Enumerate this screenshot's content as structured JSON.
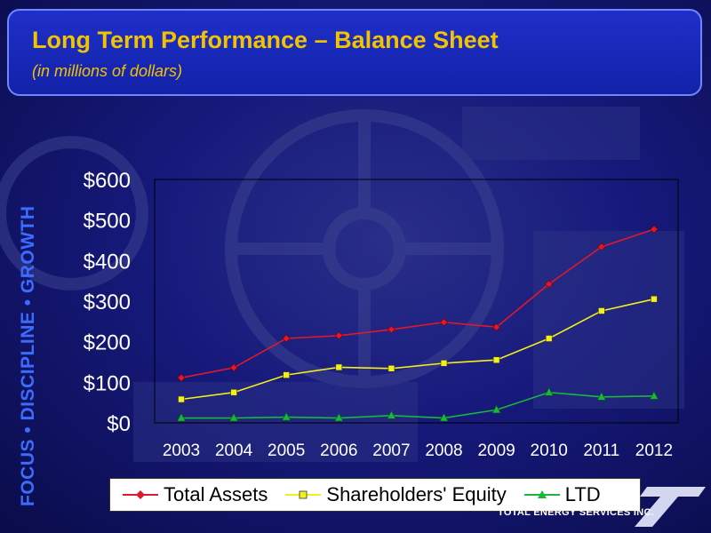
{
  "header": {
    "title": "Long Term Performance – Balance Sheet",
    "subtitle": "(in millions of dollars)"
  },
  "side_text": "FOCUS • DISCIPLINE • GROWTH",
  "logo": {
    "text": "TOTAL ENERGY SERVICES INC."
  },
  "colors": {
    "title": "#f2c300",
    "plot_border": "#000000",
    "total_assets": "#e0182a",
    "shareholders_equity": "#f3ef1a",
    "ltd": "#18b83a"
  },
  "chart_data": {
    "type": "line",
    "title": "Long Term Performance – Balance Sheet",
    "subtitle": "(in millions of dollars)",
    "xlabel": "",
    "ylabel": "",
    "categories": [
      "2003",
      "2004",
      "2005",
      "2006",
      "2007",
      "2008",
      "2009",
      "2010",
      "2011",
      "2012"
    ],
    "y_tick_labels": [
      "$0",
      "$100",
      "$200",
      "$300",
      "$400",
      "$500",
      "$600"
    ],
    "ylim": [
      0,
      600
    ],
    "grid": false,
    "legend_position": "bottom",
    "series": [
      {
        "name": "Total Assets",
        "color": "#e0182a",
        "marker": "diamond",
        "values": [
          111,
          136,
          208,
          215,
          230,
          248,
          236,
          342,
          434,
          477
        ]
      },
      {
        "name": "Shareholders' Equity",
        "color": "#f3ef1a",
        "marker": "square",
        "values": [
          58,
          75,
          118,
          137,
          134,
          147,
          155,
          208,
          276,
          305
        ]
      },
      {
        "name": "LTD",
        "color": "#18b83a",
        "marker": "triangle",
        "values": [
          12,
          12,
          14,
          12,
          18,
          12,
          32,
          75,
          64,
          66
        ]
      }
    ]
  }
}
